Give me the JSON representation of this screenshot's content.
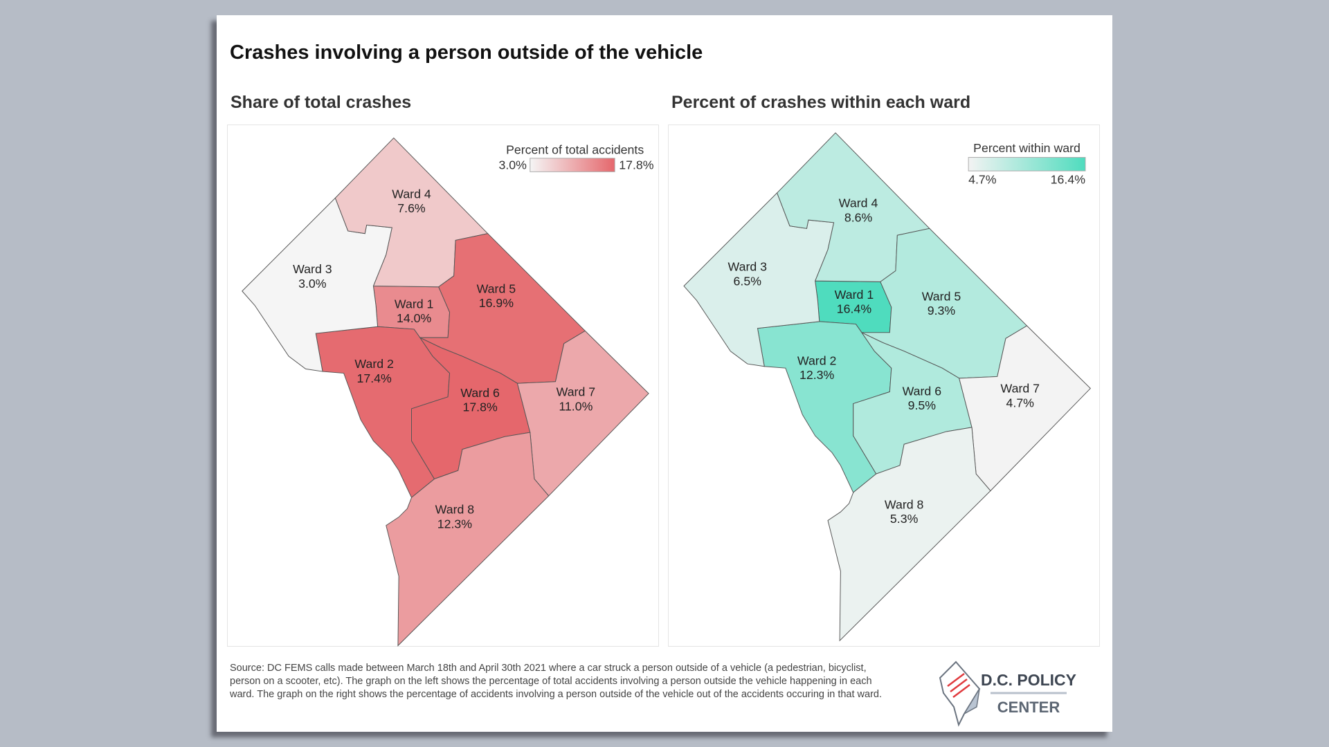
{
  "title": "Crashes involving a person outside of the vehicle",
  "chart_data": [
    {
      "type": "choropleth",
      "title": "Share of total crashes",
      "legend_title": "Percent of total accidents",
      "legend_min": "3.0%",
      "legend_max": "17.8%",
      "range": [
        3.0,
        17.8
      ],
      "color_low": "#f5f5f5",
      "color_high": "#e5676c",
      "legend_placement": "top-right",
      "regions": [
        {
          "name": "Ward 1",
          "label": "14.0%",
          "value": 14.0
        },
        {
          "name": "Ward 2",
          "label": "17.4%",
          "value": 17.4
        },
        {
          "name": "Ward 3",
          "label": "3.0%",
          "value": 3.0
        },
        {
          "name": "Ward 4",
          "label": "7.6%",
          "value": 7.6
        },
        {
          "name": "Ward 5",
          "label": "16.9%",
          "value": 16.9
        },
        {
          "name": "Ward 6",
          "label": "17.8%",
          "value": 17.8
        },
        {
          "name": "Ward 7",
          "label": "11.0%",
          "value": 11.0
        },
        {
          "name": "Ward 8",
          "label": "12.3%",
          "value": 12.3
        }
      ]
    },
    {
      "type": "choropleth",
      "title": "Percent of crashes within each ward",
      "legend_title": "Percent within ward",
      "legend_min": "4.7%",
      "legend_max": "16.4%",
      "range": [
        4.7,
        16.4
      ],
      "color_low": "#f3f3f3",
      "color_high": "#4fdcbe",
      "legend_placement": "top-right",
      "regions": [
        {
          "name": "Ward 1",
          "label": "16.4%",
          "value": 16.4
        },
        {
          "name": "Ward 2",
          "label": "12.3%",
          "value": 12.3
        },
        {
          "name": "Ward 3",
          "label": "6.5%",
          "value": 6.5
        },
        {
          "name": "Ward 4",
          "label": "8.6%",
          "value": 8.6
        },
        {
          "name": "Ward 5",
          "label": "9.3%",
          "value": 9.3
        },
        {
          "name": "Ward 6",
          "label": "9.5%",
          "value": 9.5
        },
        {
          "name": "Ward 7",
          "label": "4.7%",
          "value": 4.7
        },
        {
          "name": "Ward 8",
          "label": "5.3%",
          "value": 5.3
        }
      ]
    }
  ],
  "footer": "Source: DC FEMS calls made between March 18th and April 30th 2021 where a car struck a person outside of a vehicle (a pedestrian, bicyclist, person on a scooter, etc). The graph on the left shows the percentage of total accidents involving a person outside the vehicle happening in each ward. The graph on the right shows the percentage of accidents involving a person outside of the vehicle out of the accidents occuring in that ward.",
  "logo": {
    "line1": "D.C. POLICY",
    "line2": "CENTER"
  }
}
